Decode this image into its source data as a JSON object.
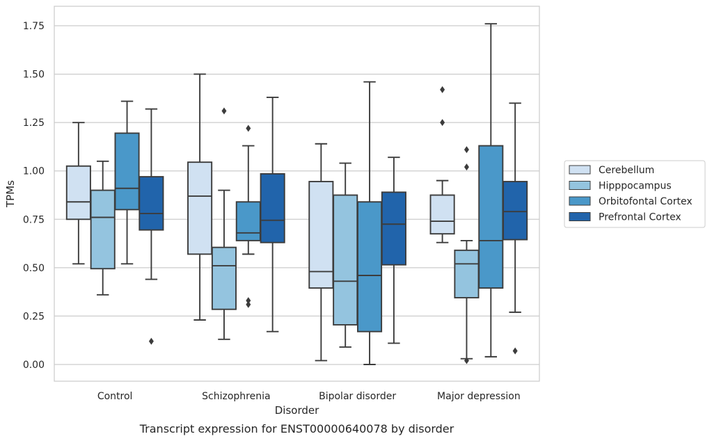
{
  "chart_data": {
    "type": "box",
    "xlabel": "Disorder",
    "ylabel": "TPMs",
    "caption": "Transcript expression for ENST00000640078 by disorder",
    "ylim": [
      -0.085,
      1.85
    ],
    "yticks": [
      0.0,
      0.25,
      0.5,
      0.75,
      1.0,
      1.25,
      1.5,
      1.75
    ],
    "ytick_labels": [
      "0.00",
      "0.25",
      "0.50",
      "0.75",
      "1.00",
      "1.25",
      "1.50",
      "1.75"
    ],
    "categories": [
      "Control",
      "Schizophrenia",
      "Bipolar disorder",
      "Major depression"
    ],
    "grid": "horizontal",
    "legend_position": "right",
    "series": [
      {
        "name": "Cerebellum",
        "color": "#d0e1f2",
        "boxes": [
          {
            "whislo": 0.52,
            "q1": 0.75,
            "med": 0.84,
            "q3": 1.025,
            "whishi": 1.25,
            "fliers": []
          },
          {
            "whislo": 0.23,
            "q1": 0.57,
            "med": 0.87,
            "q3": 1.045,
            "whishi": 1.5,
            "fliers": []
          },
          {
            "whislo": 0.02,
            "q1": 0.395,
            "med": 0.48,
            "q3": 0.945,
            "whishi": 1.14,
            "fliers": []
          },
          {
            "whislo": 0.63,
            "q1": 0.675,
            "med": 0.74,
            "q3": 0.875,
            "whishi": 0.95,
            "fliers": [
              1.25,
              1.42
            ]
          }
        ]
      },
      {
        "name": "Hipppocampus",
        "color": "#94c4df",
        "boxes": [
          {
            "whislo": 0.36,
            "q1": 0.495,
            "med": 0.76,
            "q3": 0.9,
            "whishi": 1.05,
            "fliers": []
          },
          {
            "whislo": 0.13,
            "q1": 0.285,
            "med": 0.51,
            "q3": 0.605,
            "whishi": 0.9,
            "fliers": [
              1.31
            ]
          },
          {
            "whislo": 0.09,
            "q1": 0.205,
            "med": 0.43,
            "q3": 0.875,
            "whishi": 1.04,
            "fliers": []
          },
          {
            "whislo": 0.03,
            "q1": 0.345,
            "med": 0.52,
            "q3": 0.59,
            "whishi": 0.64,
            "fliers": [
              0.02,
              1.02,
              1.11
            ]
          }
        ]
      },
      {
        "name": "Orbitofontal Cortex",
        "color": "#4a98c9",
        "boxes": [
          {
            "whislo": 0.52,
            "q1": 0.8,
            "med": 0.91,
            "q3": 1.195,
            "whishi": 1.36,
            "fliers": []
          },
          {
            "whislo": 0.57,
            "q1": 0.64,
            "med": 0.68,
            "q3": 0.84,
            "whishi": 1.13,
            "fliers": [
              0.31,
              0.33,
              1.22
            ]
          },
          {
            "whislo": 0.0,
            "q1": 0.17,
            "med": 0.46,
            "q3": 0.84,
            "whishi": 1.46,
            "fliers": []
          },
          {
            "whislo": 0.04,
            "q1": 0.395,
            "med": 0.64,
            "q3": 1.13,
            "whishi": 1.76,
            "fliers": []
          }
        ]
      },
      {
        "name": "Prefrontal Cortex",
        "color": "#2164ab",
        "boxes": [
          {
            "whislo": 0.44,
            "q1": 0.695,
            "med": 0.78,
            "q3": 0.97,
            "whishi": 1.32,
            "fliers": [
              0.12
            ]
          },
          {
            "whislo": 0.17,
            "q1": 0.63,
            "med": 0.745,
            "q3": 0.985,
            "whishi": 1.38,
            "fliers": []
          },
          {
            "whislo": 0.11,
            "q1": 0.515,
            "med": 0.725,
            "q3": 0.89,
            "whishi": 1.07,
            "fliers": []
          },
          {
            "whislo": 0.27,
            "q1": 0.645,
            "med": 0.79,
            "q3": 0.945,
            "whishi": 1.35,
            "fliers": [
              0.07
            ]
          }
        ]
      }
    ]
  }
}
